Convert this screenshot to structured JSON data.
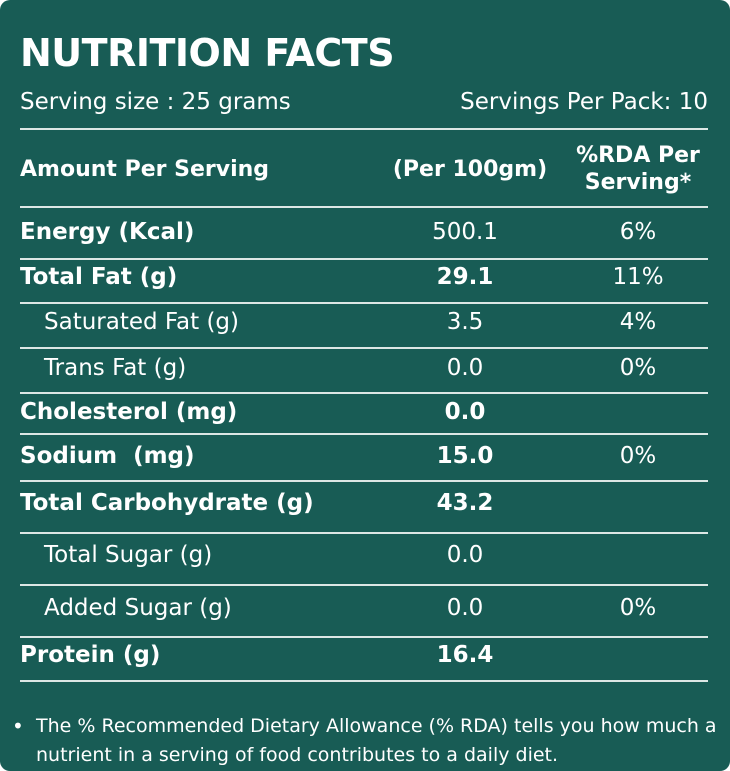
{
  "title": "NUTRITION FACTS",
  "serving_size": "Serving size : 25 grams",
  "servings_per_pack": "Servings Per Pack: 10",
  "table": {
    "headers": {
      "amount": "Amount Per Serving",
      "per100": "(Per 100gm)",
      "rda_line1": "%RDA Per",
      "rda_line2": "Serving*"
    },
    "rows": [
      {
        "label": "Energy (Kcal)",
        "value": "500.1",
        "rda": "6%"
      },
      {
        "label": "Total Fat (g)",
        "value": "29.1",
        "rda": "11%"
      },
      {
        "label": "Saturated Fat (g)",
        "value": "3.5",
        "rda": "4%"
      },
      {
        "label": "Trans Fat (g)",
        "value": "0.0",
        "rda": "0%"
      },
      {
        "label": "Cholesterol (mg)",
        "value": "0.0",
        "rda": ""
      },
      {
        "label": "Sodium  (mg)",
        "value": "15.0",
        "rda": "0%"
      },
      {
        "label": "Total Carbohydrate (g)",
        "value": "43.2",
        "rda": ""
      },
      {
        "label": "Total Sugar (g)",
        "value": "0.0",
        "rda": ""
      },
      {
        "label": "Added Sugar (g)",
        "value": "0.0",
        "rda": "0%"
      },
      {
        "label": "Protein (g)",
        "value": "16.4",
        "rda": ""
      }
    ]
  },
  "footnote": {
    "bullet": "•",
    "text": "The % Recommended Dietary Allowance (% RDA) tells you how much a nutrient in a serving of food contributes to a daily diet."
  },
  "colors": {
    "background": "#185c55",
    "text": "#ffffff"
  }
}
